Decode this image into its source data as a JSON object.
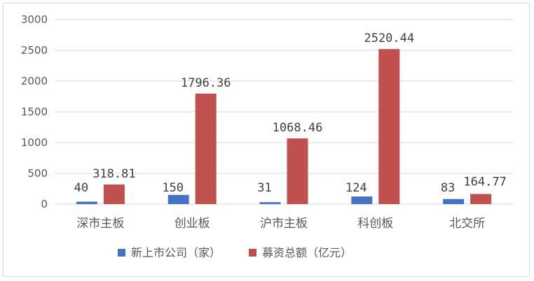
{
  "chart_data": {
    "type": "bar",
    "categories": [
      "深市主板",
      "创业板",
      "沪市主板",
      "科创板",
      "北交所"
    ],
    "series": [
      {
        "name": "新上市公司（家）",
        "values": [
          40,
          150,
          31,
          124,
          83
        ],
        "color": "#4472c4",
        "labels": [
          "40",
          "150",
          "31",
          "124",
          "83"
        ]
      },
      {
        "name": "募资总额（亿元）",
        "values": [
          318.81,
          1796.36,
          1068.46,
          2520.44,
          164.77
        ],
        "color": "#c0504d",
        "labels": [
          "318.81",
          "1796.36",
          "1068.46",
          "2520.44",
          "164.77"
        ]
      }
    ],
    "ylim": [
      0,
      3000
    ],
    "yticks": [
      "0",
      "500",
      "1000",
      "1500",
      "2000",
      "2500",
      "3000"
    ],
    "grid": true,
    "legend_position": "bottom"
  }
}
